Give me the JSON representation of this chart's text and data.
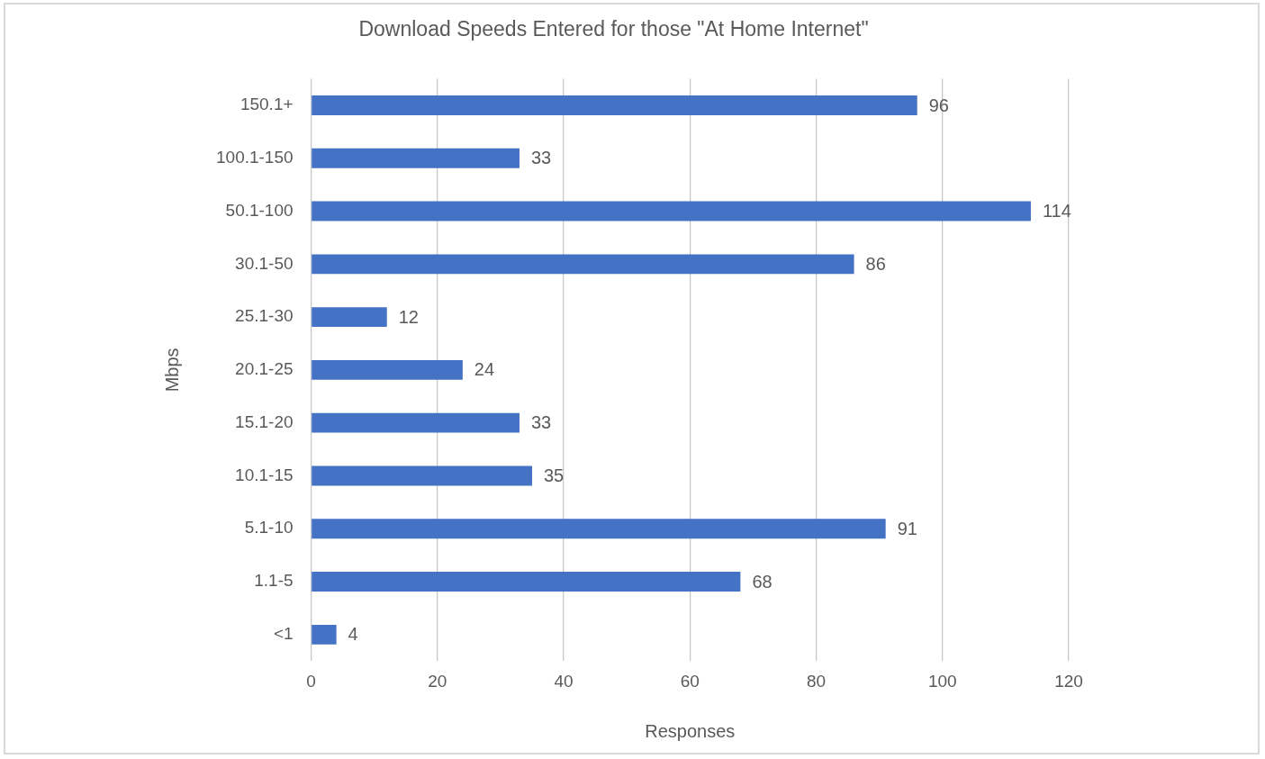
{
  "chart_data": {
    "type": "bar",
    "orientation": "horizontal",
    "title": "Download Speeds Entered for those \"At Home Internet\"",
    "xlabel": "Responses",
    "ylabel": "Mbps",
    "categories": [
      "150.1+",
      "100.1-150",
      "50.1-100",
      "30.1-50",
      "25.1-30",
      "20.1-25",
      "15.1-20",
      "10.1-15",
      "5.1-10",
      "1.1-5",
      "<1"
    ],
    "values": [
      96,
      33,
      114,
      86,
      12,
      24,
      33,
      35,
      91,
      68,
      4
    ],
    "color": "#4472c4",
    "xlim": [
      0,
      120
    ],
    "xticks": [
      0,
      20,
      40,
      60,
      80,
      100,
      120
    ],
    "grid": "x",
    "data_labels": true
  }
}
